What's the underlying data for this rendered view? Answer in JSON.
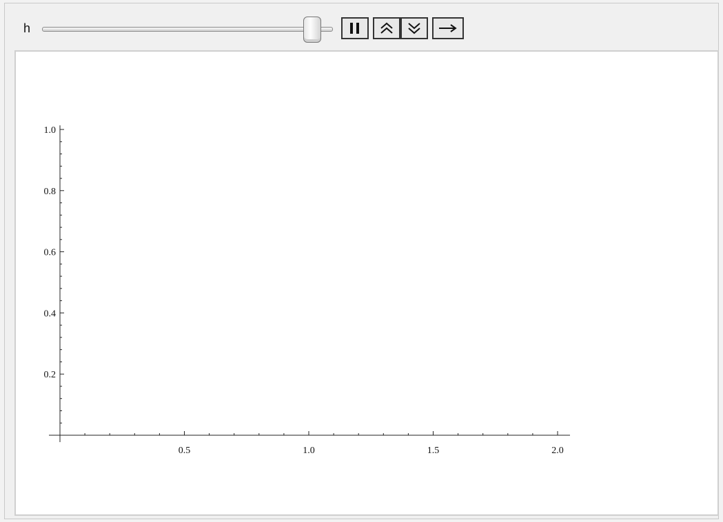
{
  "manipulate": {
    "variable_label": "h",
    "slider_value_fraction": 0.93
  },
  "controls": {
    "pause_icon": "pause-icon",
    "faster_icon": "double-chevron-up-icon",
    "slower_icon": "double-chevron-down-icon",
    "direction_icon": "arrow-right-icon"
  },
  "chart_data": {
    "type": "line",
    "title": "",
    "xlabel": "",
    "ylabel": "",
    "xlim": [
      0,
      2.0
    ],
    "ylim": [
      0,
      1.0
    ],
    "x_ticks": [
      "0.5",
      "1.0",
      "1.5",
      "2.0"
    ],
    "y_ticks": [
      "0.2",
      "0.4",
      "0.6",
      "0.8",
      "1.0"
    ],
    "series": []
  }
}
